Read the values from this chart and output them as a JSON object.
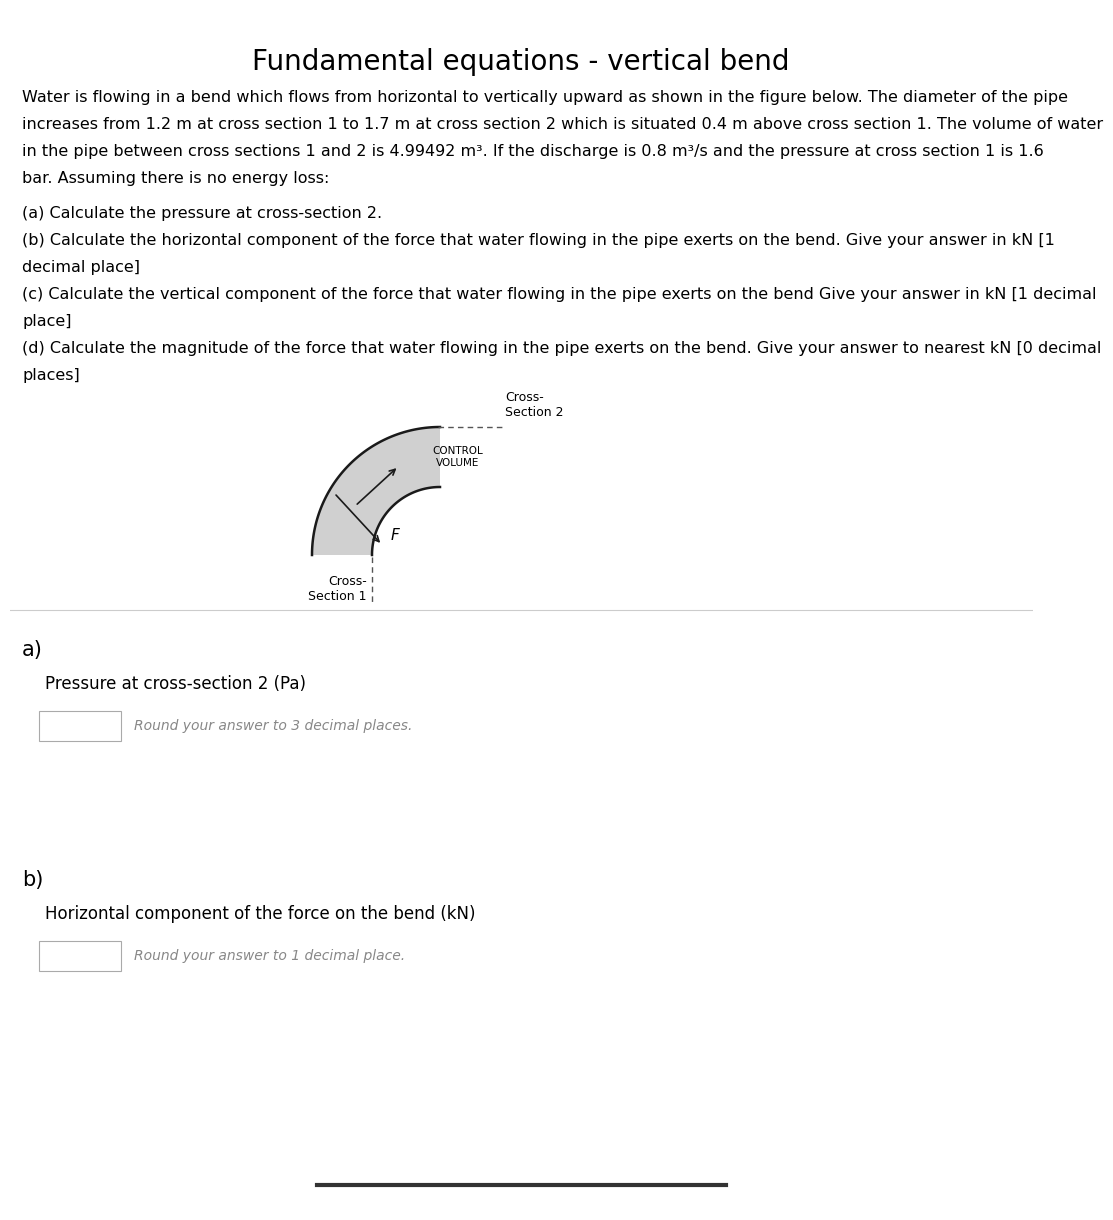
{
  "title": "Fundamental equations - vertical bend",
  "title_fontsize": 20,
  "body_fontsize": 11.5,
  "small_fontsize": 9,
  "background_color": "#ffffff",
  "text_color": "#000000",
  "paragraph1_lines": [
    "Water is flowing in a bend which flows from horizontal to vertically upward as shown in the figure below. The diameter of the pipe",
    "increases from 1.2 m at cross section 1 to 1.7 m at cross section 2 which is situated 0.4 m above cross section 1. The volume of water",
    "in the pipe between cross sections 1 and 2 is 4.99492 m³. If the discharge is 0.8 m³/s and the pressure at cross section 1 is 1.6",
    "bar. Assuming there is no energy loss:"
  ],
  "list_items": [
    "(a) Calculate the pressure at cross-section 2.",
    "(b) Calculate the horizontal component of the force that water flowing in the pipe exerts on the bend. Give your answer in kN [1",
    "decimal place]",
    "(c) Calculate the vertical component of the force that water flowing in the pipe exerts on the bend Give your answer in kN [1 decimal",
    "place]",
    "(d) Calculate the magnitude of the force that water flowing in the pipe exerts on the bend. Give your answer to nearest kN [0 decimal",
    "places]"
  ],
  "section_a_label": "a)",
  "section_a_question": "Pressure at cross-section 2 (Pa)",
  "section_a_hint": "Round your answer to 3 decimal places.",
  "section_b_label": "b)",
  "section_b_question": "Horizontal component of the force on the bend (kN)",
  "section_b_hint": "Round your answer to 1 decimal place.",
  "pipe_fill_color": "#d0d0d0",
  "pipe_edge_color": "#1a1a1a",
  "divider_color": "#cccccc",
  "bottom_bar_color": "#333333"
}
